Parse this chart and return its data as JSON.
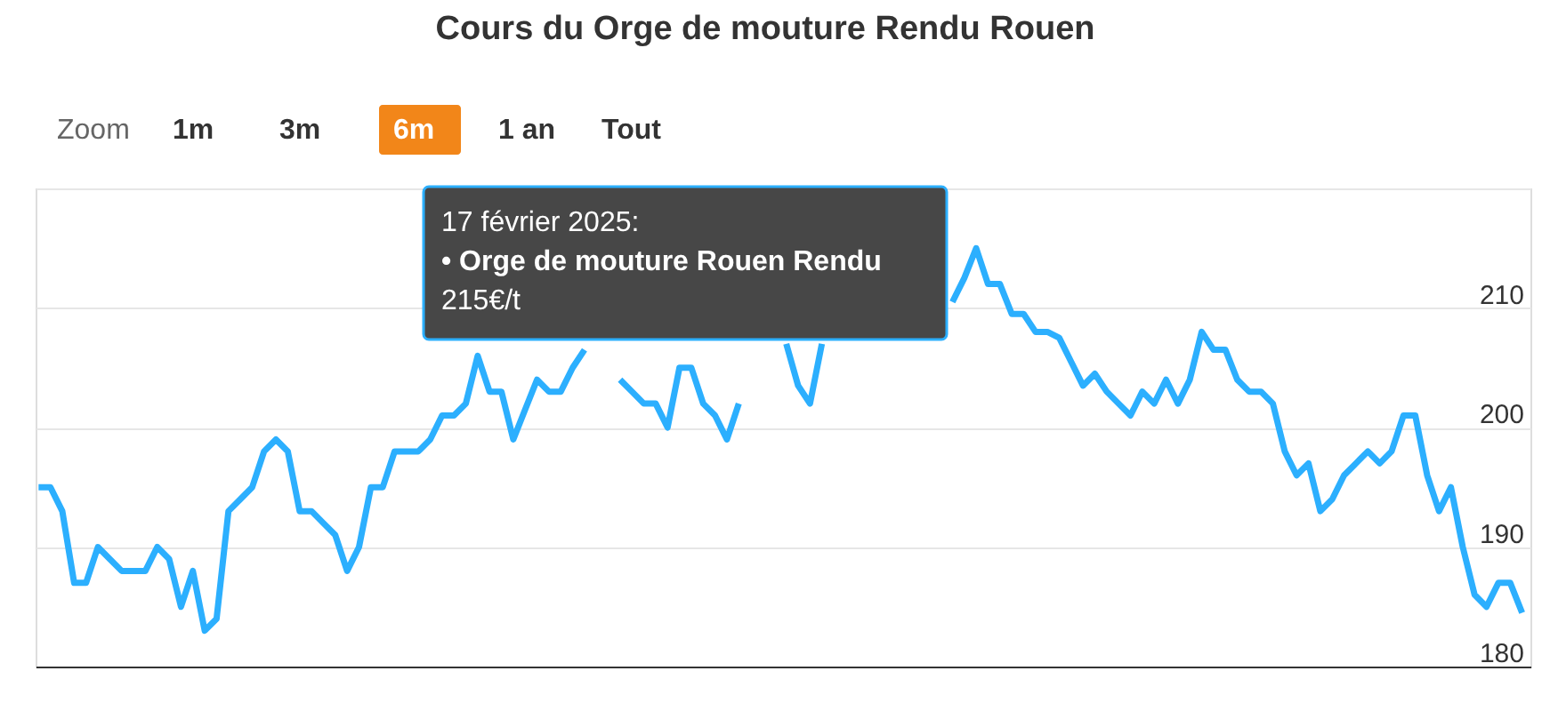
{
  "chart_data": {
    "type": "line",
    "title": "Cours du Orge de mouture Rendu Rouen",
    "categories": [
      null,
      null,
      null,
      null,
      null,
      null,
      null,
      null,
      null,
      null,
      null,
      null,
      null,
      null,
      null,
      null,
      null,
      null,
      null,
      null,
      null,
      null,
      null,
      null,
      null,
      null,
      null,
      null,
      null,
      null,
      null,
      null,
      null,
      null,
      null,
      null,
      null,
      null,
      null,
      null,
      null,
      null,
      null,
      null,
      null,
      null,
      null,
      null,
      null,
      null,
      null,
      null,
      null,
      null,
      null,
      null,
      null,
      null,
      null,
      null,
      null,
      null,
      null,
      null,
      null,
      null,
      null,
      null,
      null,
      null,
      null,
      null,
      null,
      null,
      null,
      null,
      null,
      null,
      null,
      null,
      null,
      null,
      null,
      null,
      null,
      null,
      null,
      null,
      null,
      null,
      null,
      null,
      null,
      null,
      null,
      null,
      null,
      null,
      null,
      null,
      null,
      null,
      null,
      null,
      null,
      null,
      null,
      null,
      null,
      null,
      null,
      null,
      null,
      null,
      null,
      null,
      null,
      null,
      null,
      null,
      null,
      null,
      null,
      null,
      null,
      null
    ],
    "series": [
      {
        "color": "#2caffe",
        "values": [
          195,
          195,
          193,
          187,
          187,
          190,
          189,
          188,
          188,
          188,
          190,
          189,
          185,
          188,
          183,
          184,
          193,
          194,
          195,
          198,
          199,
          198,
          193,
          193,
          192,
          191,
          188,
          190,
          195,
          195,
          198,
          198,
          198,
          199,
          201,
          201,
          202,
          206,
          203,
          203,
          199,
          201.5,
          204,
          203,
          203,
          205,
          206.5,
          null,
          null,
          204,
          203,
          202,
          202,
          200,
          205,
          205,
          202,
          201,
          199,
          202,
          null,
          null,
          null,
          207,
          203.5,
          202,
          207,
          null,
          null,
          null,
          null,
          null,
          null,
          null,
          null,
          null,
          null,
          210.5,
          212.5,
          215,
          212,
          212,
          209.5,
          209.5,
          208,
          208,
          207.5,
          205.5,
          203.5,
          204.5,
          203,
          202,
          201,
          203,
          202,
          204,
          202,
          204,
          208,
          206.5,
          206.5,
          204,
          203,
          203,
          202,
          198,
          196,
          197,
          193,
          194,
          196,
          197,
          198,
          197,
          198,
          201,
          201,
          196,
          193,
          195,
          190,
          186,
          185,
          187,
          187,
          184.5
        ]
      }
    ],
    "ylim": [
      180,
      220
    ],
    "yticks": [
      180,
      190,
      200,
      210,
      {
        "value": 220,
        "label": null
      }
    ],
    "grid": "y",
    "marker": "none",
    "line_style": "solid",
    "annotations": [
      "17 février 2025:\n• Orge de mouture Rouen Rendu\n215€/t",
      "Zoom",
      "1m",
      "3m",
      "6m",
      "1 an",
      "Tout"
    ]
  }
}
